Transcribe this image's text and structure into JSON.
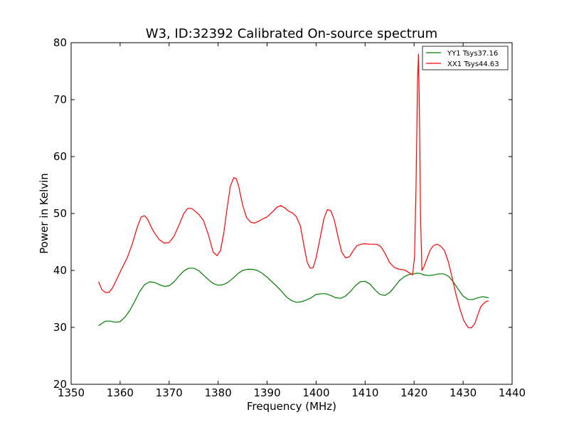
{
  "chart_data": {
    "type": "line",
    "title": "W3, ID:32392 Calibrated On-source spectrum",
    "xlabel": "Frequency (MHz)",
    "ylabel": "Power in Kelvin",
    "xlim": [
      1350,
      1440
    ],
    "ylim": [
      20,
      80
    ],
    "xticks": [
      1350,
      1360,
      1370,
      1380,
      1390,
      1400,
      1410,
      1420,
      1430,
      1440
    ],
    "yticks": [
      20,
      30,
      40,
      50,
      60,
      70,
      80
    ],
    "grid": false,
    "legend_position": "top-right",
    "series": [
      {
        "name": "YY1 Tsys37.16",
        "color": "#008000",
        "x": [
          1355.6,
          1357,
          1358,
          1359,
          1360,
          1361,
          1362,
          1363,
          1364,
          1365,
          1366,
          1367,
          1368,
          1369,
          1370,
          1371,
          1372,
          1373,
          1374,
          1375,
          1376,
          1377,
          1378,
          1379,
          1380,
          1381,
          1382,
          1383,
          1384,
          1385,
          1386,
          1387,
          1388,
          1389,
          1390,
          1391,
          1392,
          1393,
          1394,
          1395,
          1396,
          1397,
          1398,
          1399,
          1400,
          1401,
          1402,
          1403,
          1404,
          1405,
          1406,
          1407,
          1408,
          1409,
          1410,
          1411,
          1412,
          1413,
          1414,
          1415,
          1416,
          1417,
          1418,
          1419,
          1420,
          1420.5,
          1421,
          1421.5,
          1422,
          1423,
          1424,
          1425,
          1426,
          1427,
          1428,
          1429,
          1430,
          1431,
          1432,
          1433,
          1434,
          1435.2
        ],
        "values": [
          30.3,
          31.1,
          31.1,
          30.9,
          31.0,
          31.8,
          33.0,
          34.6,
          36.3,
          37.5,
          38.0,
          37.9,
          37.5,
          37.2,
          37.3,
          38.0,
          39.0,
          39.9,
          40.4,
          40.4,
          40.0,
          39.2,
          38.4,
          37.7,
          37.4,
          37.5,
          37.9,
          38.6,
          39.4,
          40.0,
          40.2,
          40.2,
          40.0,
          39.5,
          38.8,
          38.0,
          37.2,
          36.3,
          35.3,
          34.7,
          34.4,
          34.5,
          34.8,
          35.2,
          35.8,
          35.9,
          35.9,
          35.6,
          35.2,
          35.1,
          35.5,
          36.3,
          37.3,
          38.0,
          38.1,
          37.6,
          36.6,
          35.8,
          35.6,
          36.1,
          37.1,
          38.2,
          38.9,
          39.3,
          39.4,
          39.5,
          39.5,
          39.4,
          39.2,
          39.1,
          39.2,
          39.4,
          39.4,
          39.0,
          38.0,
          36.7,
          35.5,
          34.9,
          34.9,
          35.2,
          35.4,
          35.2
        ]
      },
      {
        "name": "XX1 Tsys44.63",
        "color": "#ff0000",
        "x": [
          1355.6,
          1356.3,
          1357,
          1357.8,
          1358.5,
          1359.5,
          1360.5,
          1361.5,
          1362.5,
          1363.5,
          1364.3,
          1365,
          1365.6,
          1366.3,
          1367,
          1368,
          1369,
          1370,
          1371,
          1372,
          1373,
          1373.8,
          1374.6,
          1375.3,
          1376,
          1377,
          1378,
          1379,
          1379.8,
          1380.5,
          1381.2,
          1381.8,
          1382.5,
          1383.2,
          1383.7,
          1384.2,
          1385,
          1385.8,
          1386.6,
          1387.4,
          1388.2,
          1389,
          1390,
          1391,
          1392,
          1392.8,
          1393.6,
          1394.4,
          1395.2,
          1396,
          1396.8,
          1397.6,
          1398.2,
          1398.8,
          1399.4,
          1400,
          1400.8,
          1401.6,
          1402.3,
          1403,
          1403.7,
          1404.4,
          1405.2,
          1406,
          1406.8,
          1407.6,
          1408.4,
          1409.2,
          1410,
          1410.8,
          1411.6,
          1412.4,
          1413.2,
          1414,
          1415,
          1416,
          1417,
          1418,
          1419,
          1419.7,
          1420.1,
          1420.4,
          1420.7,
          1420.9,
          1421.1,
          1421.3,
          1421.6,
          1422,
          1422.6,
          1423.3,
          1424,
          1424.8,
          1425.5,
          1426.2,
          1427,
          1427.8,
          1428.6,
          1429.4,
          1430.2,
          1431,
          1431.7,
          1432.4,
          1433,
          1433.6,
          1434.2,
          1434.8,
          1435.2
        ],
        "values": [
          38.0,
          36.6,
          36.1,
          36.2,
          37.0,
          38.8,
          40.6,
          42.3,
          44.7,
          47.6,
          49.4,
          49.6,
          49.0,
          47.7,
          46.6,
          45.4,
          44.8,
          44.9,
          46.0,
          47.9,
          50.0,
          50.9,
          50.9,
          50.4,
          49.9,
          48.8,
          46.3,
          43.2,
          42.6,
          43.5,
          46.8,
          50.7,
          54.8,
          56.3,
          56.1,
          54.8,
          51.5,
          49.3,
          48.5,
          48.3,
          48.6,
          49.0,
          49.4,
          50.2,
          51.1,
          51.4,
          51.0,
          50.4,
          50.1,
          49.4,
          47.8,
          44.0,
          41.4,
          40.4,
          40.5,
          42.2,
          45.6,
          49.1,
          50.7,
          50.5,
          48.9,
          46.2,
          43.3,
          42.2,
          42.4,
          43.5,
          44.4,
          44.6,
          44.7,
          44.6,
          44.6,
          44.6,
          44.2,
          43.1,
          41.4,
          40.5,
          40.2,
          40.1,
          39.6,
          39.2,
          42.5,
          55.0,
          73.0,
          78.0,
          67.0,
          50.0,
          40.0,
          40.6,
          42.0,
          43.6,
          44.4,
          44.6,
          44.2,
          43.5,
          41.5,
          38.6,
          35.6,
          33.1,
          31.1,
          30.0,
          29.9,
          30.7,
          32.2,
          33.6,
          34.2,
          34.6,
          34.6
        ]
      }
    ]
  }
}
